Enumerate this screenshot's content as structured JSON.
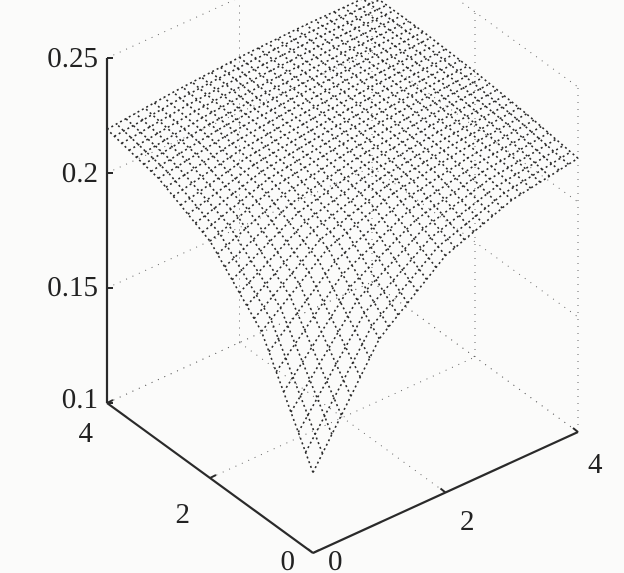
{
  "chart_data": {
    "type": "surface",
    "title": "",
    "xlabel": "",
    "ylabel": "",
    "zlabel": "",
    "x": [
      0,
      1,
      2,
      3,
      4
    ],
    "y": [
      0,
      1,
      2,
      3,
      4
    ],
    "z": [
      [
        0.135,
        0.18,
        0.203,
        0.214,
        0.219
      ],
      [
        0.18,
        0.203,
        0.214,
        0.219,
        0.222
      ],
      [
        0.203,
        0.214,
        0.219,
        0.222,
        0.224
      ],
      [
        0.214,
        0.219,
        0.222,
        0.224,
        0.225
      ],
      [
        0.219,
        0.222,
        0.224,
        0.225,
        0.225
      ]
    ],
    "xlim": [
      0,
      4
    ],
    "ylim": [
      0,
      4
    ],
    "zlim": [
      0.1,
      0.25
    ],
    "x_ticks": [
      "0",
      "2",
      "4"
    ],
    "y_ticks": [
      "0",
      "2",
      "4"
    ],
    "z_ticks": [
      "0.1",
      "0.15",
      "0.2",
      "0.25"
    ],
    "grid": true,
    "line_color": "#2a2a2a"
  }
}
